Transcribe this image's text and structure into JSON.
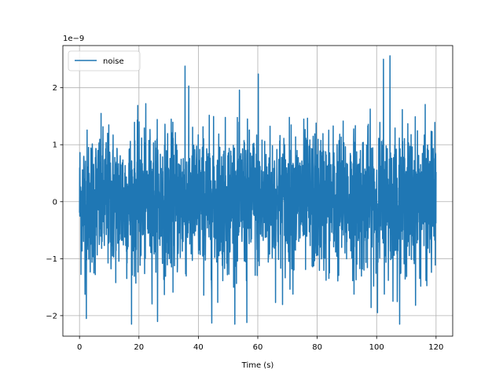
{
  "chart_data": {
    "type": "line",
    "title": "",
    "xlabel": "Time (s)",
    "ylabel": "",
    "y_offset_label": "1e−9",
    "xlim": [
      -5.6,
      125.6
    ],
    "ylim": [
      -2.36e-09,
      2.74e-09
    ],
    "x_ticks": [
      0,
      20,
      40,
      60,
      80,
      100,
      120
    ],
    "x_tick_labels": [
      "0",
      "20",
      "40",
      "60",
      "80",
      "100",
      "120"
    ],
    "y_ticks": [
      -2e-09,
      -1e-09,
      0,
      1e-09,
      2e-09
    ],
    "y_tick_labels": [
      "−2",
      "−1",
      "0",
      "1",
      "2"
    ],
    "grid": true,
    "legend_position": "top-left",
    "series": [
      {
        "name": "noise",
        "color": "#1f77b4",
        "sample_count": 2400,
        "x_start": 0,
        "x_end": 120,
        "envelope_y": [
          -2.15e-09,
          2.56e-09
        ],
        "peaks": [
          {
            "x": 35.5,
            "y": 2.38e-09
          },
          {
            "x": 60.2,
            "y": 2.24e-09
          },
          {
            "x": 102.3,
            "y": 2.5e-09
          },
          {
            "x": 104.5,
            "y": 2.56e-09
          },
          {
            "x": 2.3,
            "y": -2.05e-09
          },
          {
            "x": 44.5,
            "y": -2.13e-09
          },
          {
            "x": 56.3,
            "y": -2.12e-09
          }
        ]
      }
    ]
  }
}
